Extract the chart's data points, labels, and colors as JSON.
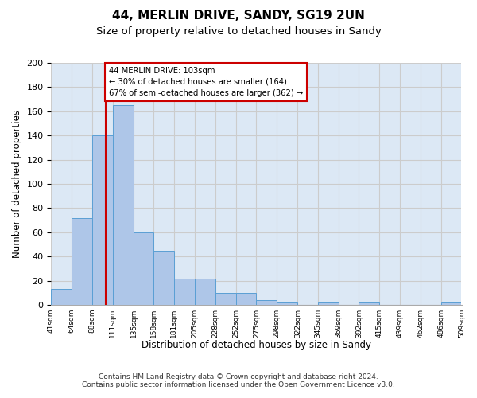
{
  "title1": "44, MERLIN DRIVE, SANDY, SG19 2UN",
  "title2": "Size of property relative to detached houses in Sandy",
  "xlabel": "Distribution of detached houses by size in Sandy",
  "ylabel": "Number of detached properties",
  "bar_edges": [
    41,
    64,
    88,
    111,
    135,
    158,
    181,
    205,
    228,
    252,
    275,
    298,
    322,
    345,
    369,
    392,
    415,
    439,
    462,
    486,
    509
  ],
  "bar_heights": [
    13,
    72,
    140,
    165,
    60,
    45,
    22,
    22,
    10,
    10,
    4,
    2,
    0,
    2,
    0,
    2,
    0,
    0,
    0,
    2
  ],
  "bar_color": "#aec6e8",
  "bar_edge_color": "#5a9fd4",
  "property_size": 103,
  "annotation_text": "44 MERLIN DRIVE: 103sqm\n← 30% of detached houses are smaller (164)\n67% of semi-detached houses are larger (362) →",
  "annotation_box_color": "#ffffff",
  "annotation_box_edge": "#cc0000",
  "red_line_x": 103,
  "red_line_color": "#cc0000",
  "grid_color": "#cccccc",
  "bg_color": "#dce8f5",
  "ylim": [
    0,
    200
  ],
  "yticks": [
    0,
    20,
    40,
    60,
    80,
    100,
    120,
    140,
    160,
    180,
    200
  ],
  "footer1": "Contains HM Land Registry data © Crown copyright and database right 2024.",
  "footer2": "Contains public sector information licensed under the Open Government Licence v3.0.",
  "title1_fontsize": 11,
  "title2_fontsize": 9.5,
  "tick_labels": [
    "41sqm",
    "64sqm",
    "88sqm",
    "111sqm",
    "135sqm",
    "158sqm",
    "181sqm",
    "205sqm",
    "228sqm",
    "252sqm",
    "275sqm",
    "298sqm",
    "322sqm",
    "345sqm",
    "369sqm",
    "392sqm",
    "415sqm",
    "439sqm",
    "462sqm",
    "486sqm",
    "509sqm"
  ]
}
